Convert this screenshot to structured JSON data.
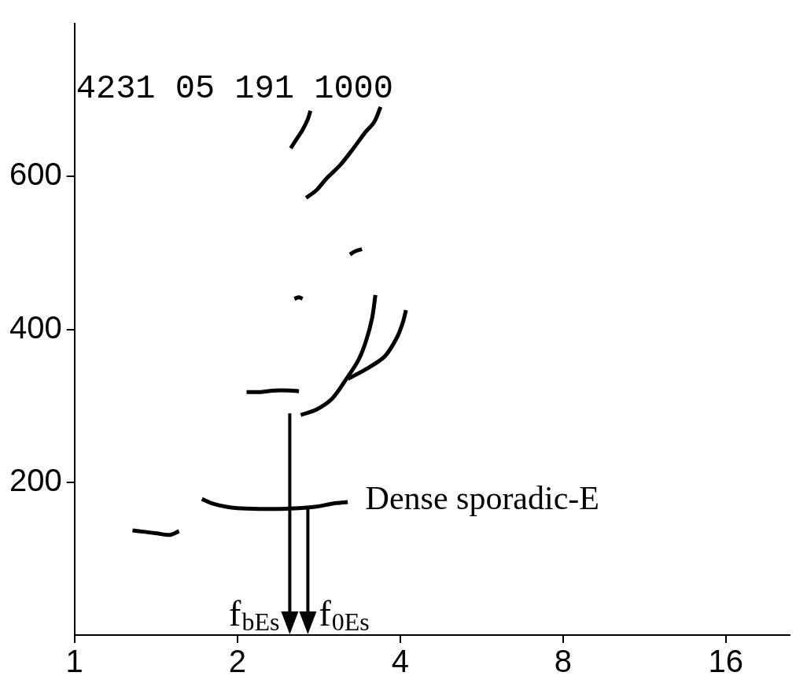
{
  "chart_data": {
    "type": "scatter",
    "title": "4231 05 191 1000",
    "log": "x",
    "grid": false,
    "xlim": [
      1,
      21
    ],
    "xticks": [
      1,
      2,
      4,
      8,
      16
    ],
    "ylim": [
      0,
      800
    ],
    "yticks": [
      200,
      400,
      600
    ],
    "series": [
      {
        "color": "#000000",
        "marker": "none",
        "line_style": "solid",
        "x": [
          1.28,
          1.35,
          1.42,
          1.5,
          1.56
        ],
        "values": [
          137,
          135,
          133,
          131,
          136
        ]
      },
      {
        "color": "#000000",
        "marker": "none",
        "line_style": "solid",
        "x": [
          1.72,
          1.8,
          1.9,
          2.0,
          2.2,
          2.4,
          2.6,
          2.8,
          3.0,
          3.2
        ],
        "values": [
          178,
          172,
          168,
          166,
          165,
          165,
          166,
          168,
          172,
          174
        ]
      },
      {
        "color": "#000000",
        "marker": "none",
        "line_style": "solid",
        "x": [
          2.08,
          2.2,
          2.35,
          2.5,
          2.6
        ],
        "values": [
          318,
          318,
          320,
          320,
          319
        ]
      },
      {
        "color": "#000000",
        "marker": "none",
        "line_style": "solid",
        "x": [
          2.62,
          2.8,
          3.0,
          3.18,
          3.35,
          3.46,
          3.55,
          3.6
        ],
        "values": [
          288,
          295,
          310,
          335,
          360,
          385,
          415,
          445
        ]
      },
      {
        "color": "#000000",
        "marker": "none",
        "line_style": "solid",
        "x": [
          3.2,
          3.5,
          3.75,
          3.95,
          4.05,
          4.1
        ],
        "values": [
          335,
          350,
          365,
          390,
          410,
          425
        ]
      },
      {
        "color": "#000000",
        "marker": "none",
        "line_style": "solid",
        "x": [
          2.68,
          2.8,
          2.92,
          3.1,
          3.28,
          3.45,
          3.58,
          3.68
        ],
        "values": [
          572,
          582,
          597,
          615,
          637,
          658,
          671,
          691
        ]
      },
      {
        "color": "#000000",
        "marker": "none",
        "line_style": "solid",
        "x": [
          2.51,
          2.58,
          2.64,
          2.7,
          2.73
        ],
        "values": [
          637,
          650,
          661,
          675,
          686
        ]
      },
      {
        "color": "#000000",
        "marker": "none",
        "line_style": "solid",
        "x": [
          2.55,
          2.6,
          2.64
        ],
        "values": [
          440,
          442,
          440
        ]
      },
      {
        "color": "#000000",
        "marker": "none",
        "line_style": "solid",
        "x": [
          3.23,
          3.3,
          3.4
        ],
        "values": [
          498,
          502,
          505
        ]
      }
    ],
    "annotations": [
      {
        "text": "Dense sporadic-E",
        "x": 3.45,
        "y": 176
      },
      {
        "text": "f",
        "subscript": "bEs",
        "x": 2.5,
        "y": 290,
        "marker": "arrow"
      },
      {
        "text": "f",
        "subscript": "0Es",
        "x": 2.7,
        "y": 165,
        "marker": "arrow"
      }
    ]
  }
}
